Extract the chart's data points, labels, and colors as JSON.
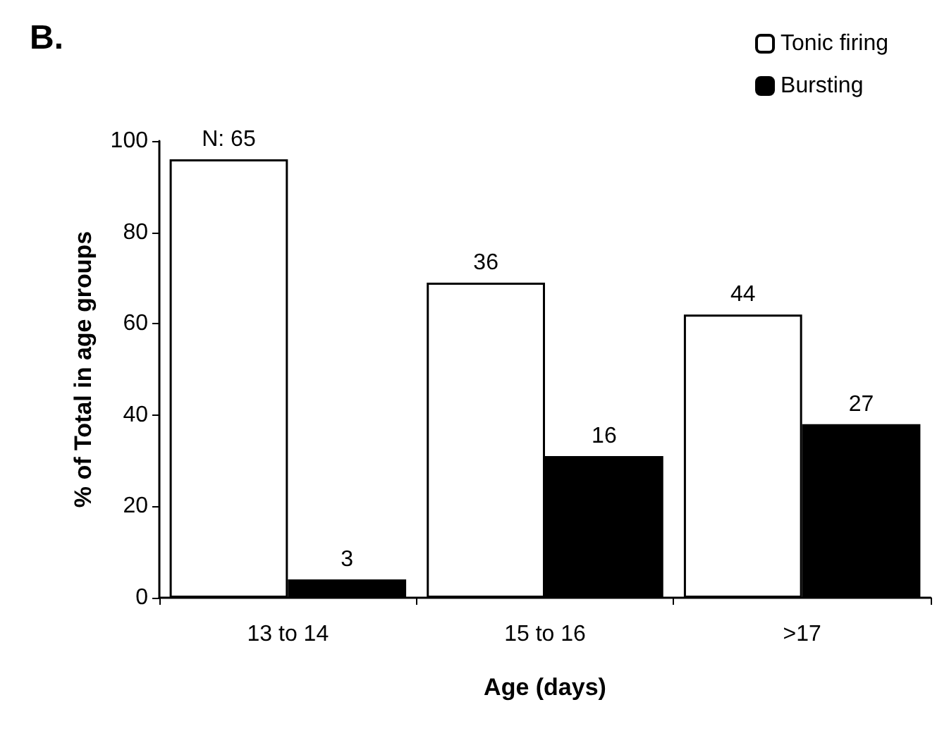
{
  "chart_data": {
    "type": "bar",
    "title": "B.",
    "xlabel": "Age (days)",
    "ylabel": "% of Total in age groups",
    "categories": [
      "13 to 14",
      "15 to 16",
      ">17"
    ],
    "series": [
      {
        "name": "Tonic firing",
        "color": "#ffffff",
        "values": [
          96,
          69,
          62
        ]
      },
      {
        "name": "Bursting",
        "color": "#000000",
        "values": [
          4,
          31,
          38
        ]
      }
    ],
    "annotations": [
      {
        "text": "N: 65",
        "x": "13 to 14",
        "y": 96
      },
      {
        "text": "3",
        "x": "13 to 14",
        "y": 4
      },
      {
        "text": "36",
        "x": "15 to 16",
        "y": 69
      },
      {
        "text": "16",
        "x": "15 to 16",
        "y": 31
      },
      {
        "text": "44",
        "x": ">17",
        "y": 62
      },
      {
        "text": "27",
        "x": ">17",
        "y": 38
      }
    ],
    "ylim": [
      0,
      100
    ],
    "yticks": [
      0,
      20,
      40,
      60,
      80,
      100
    ],
    "grid": false,
    "legend": "top right"
  }
}
